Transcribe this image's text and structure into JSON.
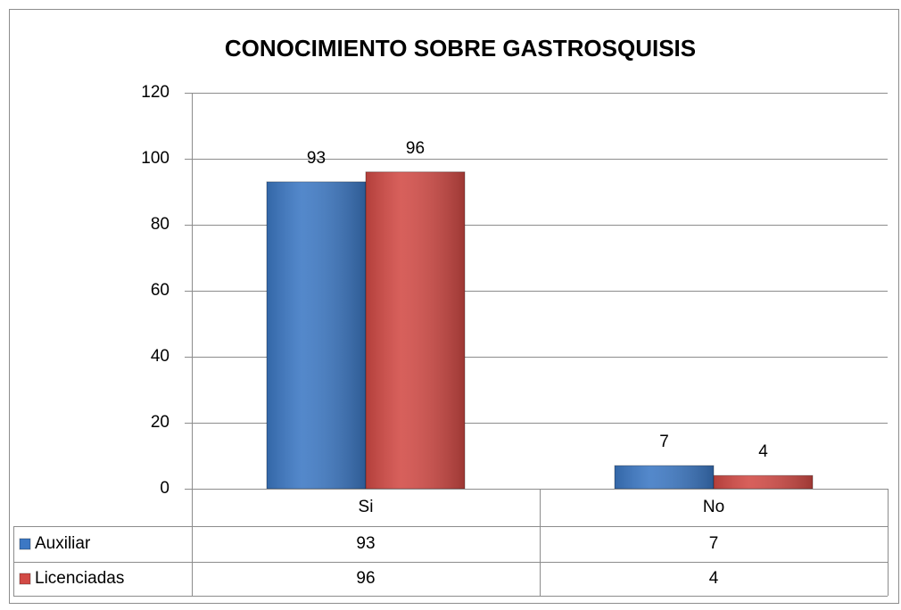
{
  "chart_data": {
    "type": "bar",
    "title": "CONOCIMIENTO SOBRE GASTROSQUISIS",
    "categories": [
      "Si",
      "No"
    ],
    "series": [
      {
        "name": "Auxiliar",
        "color": "#3c78c4",
        "values": [
          93,
          7
        ]
      },
      {
        "name": "Licenciadas",
        "color": "#d24a45",
        "values": [
          96,
          4
        ]
      }
    ],
    "ylim": [
      0,
      120
    ],
    "yticks": [
      0,
      20,
      40,
      60,
      80,
      100,
      120
    ],
    "grid": true,
    "data_table": true
  }
}
